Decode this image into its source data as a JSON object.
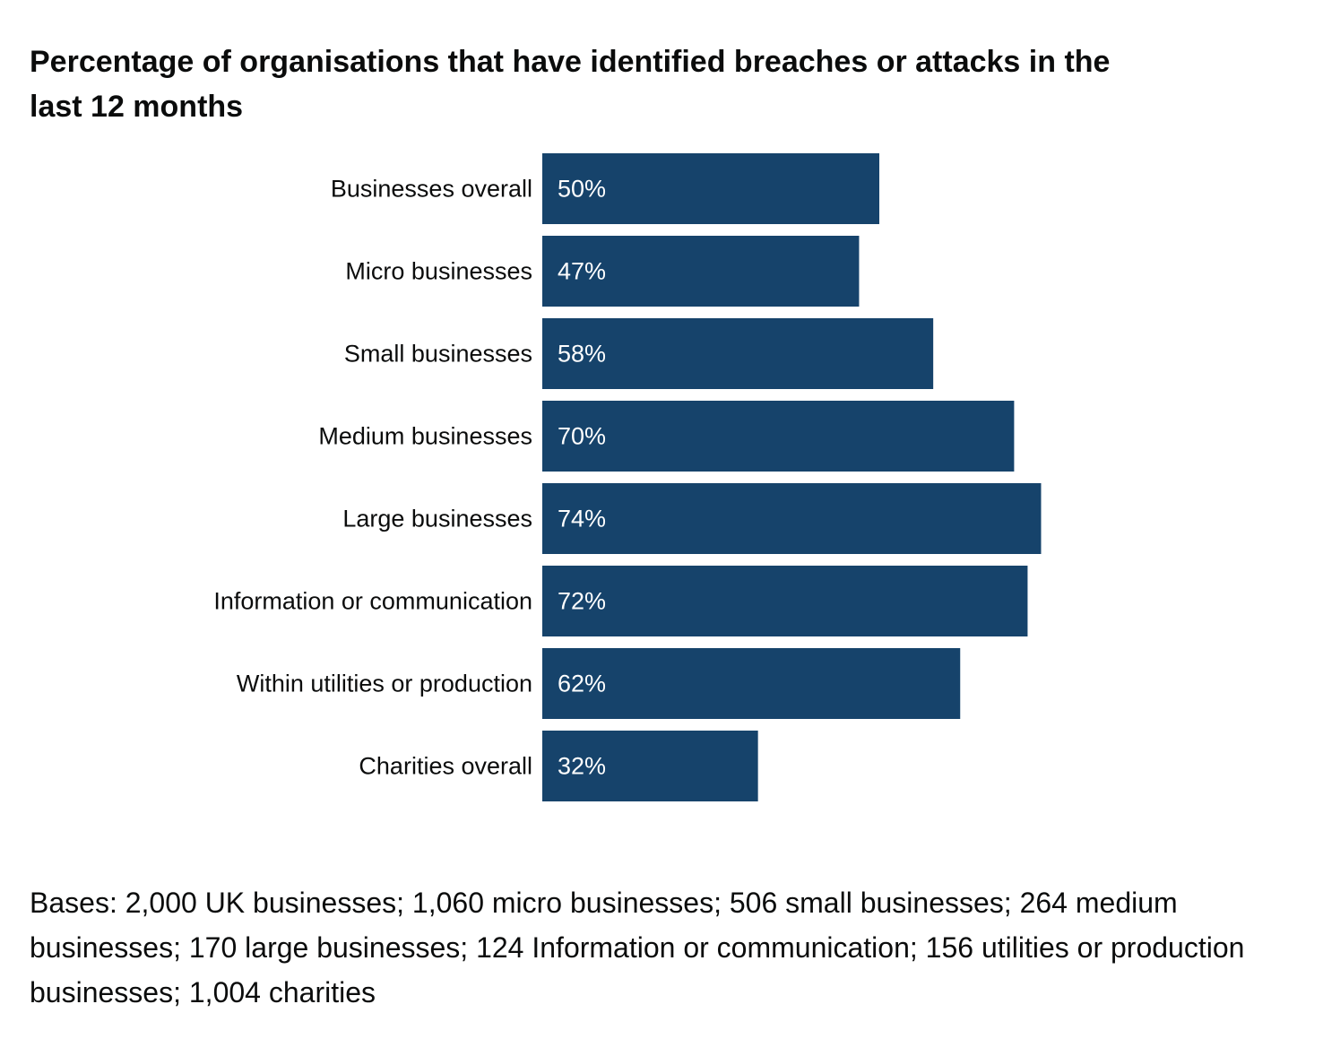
{
  "title": "Percentage of organisations that have identified breaches or attacks in the last 12 months",
  "note": "Bases: 2,000 UK businesses; 1,060 micro businesses; 506 small businesses; 264 medium businesses; 170 large businesses; 124 Information or communication; 156 utilities or production businesses; 1,004 charities",
  "colors": {
    "bar": "#16436b",
    "bar_label": "#ffffff",
    "text": "#0b0c0c"
  },
  "chart_data": {
    "type": "bar",
    "orientation": "horizontal",
    "title": "Percentage of organisations that have identified breaches or attacks in the last 12 months",
    "categories": [
      "Businesses overall",
      "Micro businesses",
      "Small businesses",
      "Medium businesses",
      "Large businesses",
      "Information or communication",
      "Within utilities or production",
      "Charities overall"
    ],
    "values": [
      50,
      47,
      58,
      70,
      74,
      72,
      62,
      32
    ],
    "value_labels": [
      "50%",
      "47%",
      "58%",
      "70%",
      "74%",
      "72%",
      "62%",
      "32%"
    ],
    "unit": "%",
    "xlim": [
      0,
      100
    ],
    "grid": false,
    "legend": "none"
  }
}
